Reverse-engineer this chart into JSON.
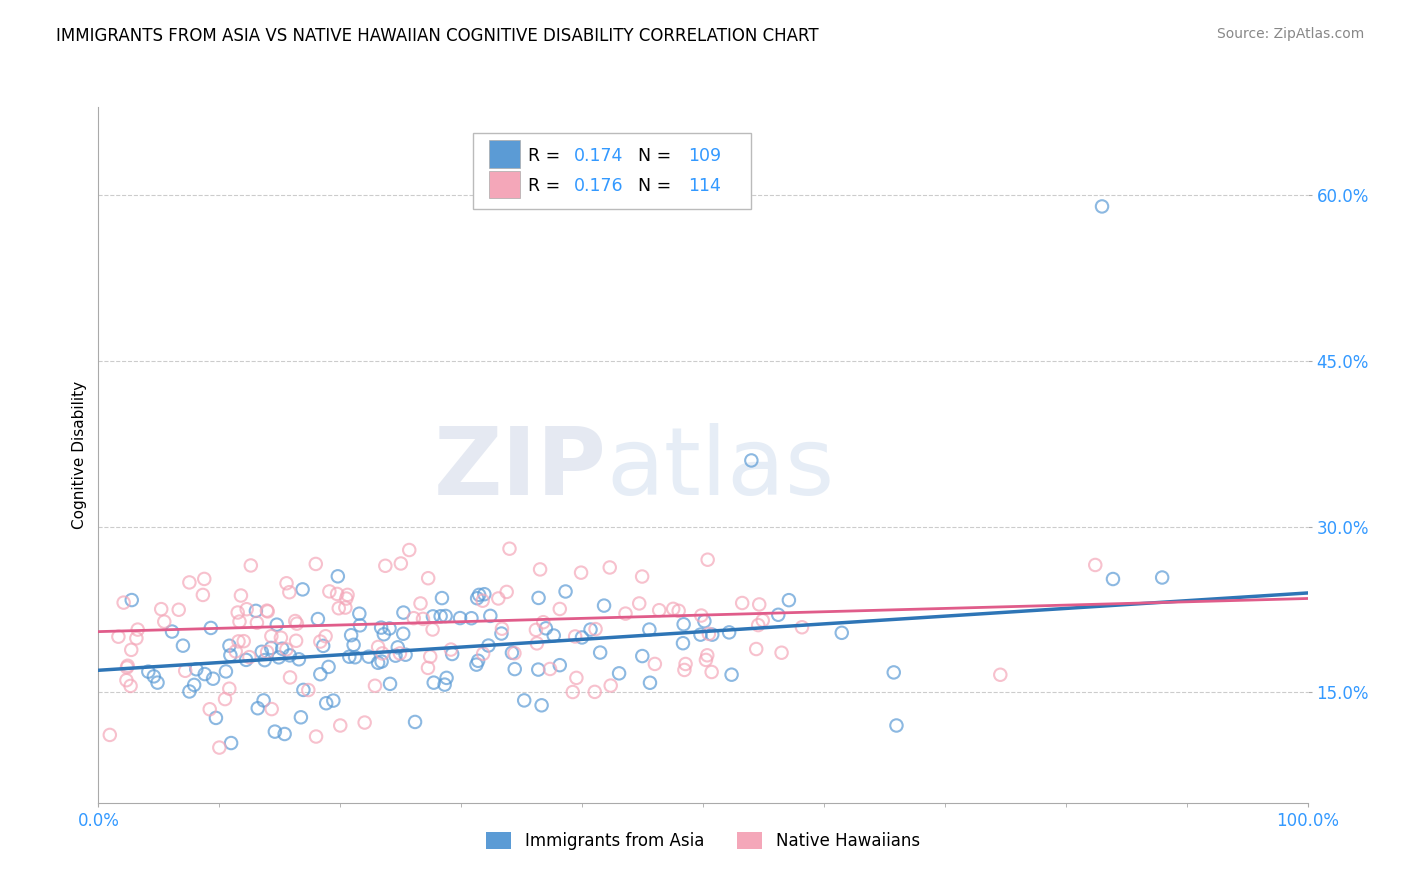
{
  "title": "IMMIGRANTS FROM ASIA VS NATIVE HAWAIIAN COGNITIVE DISABILITY CORRELATION CHART",
  "source": "Source: ZipAtlas.com",
  "ylabel": "Cognitive Disability",
  "xlabel": "",
  "xlim": [
    0,
    100
  ],
  "ylim": [
    5,
    68
  ],
  "yticks": [
    15.0,
    30.0,
    45.0,
    60.0
  ],
  "xticks": [
    0,
    100
  ],
  "xtick_labels": [
    "0.0%",
    "100.0%"
  ],
  "ytick_labels": [
    "15.0%",
    "30.0%",
    "45.0%",
    "60.0%"
  ],
  "blue_color": "#5b9bd5",
  "pink_color": "#f4a7b9",
  "blue_line_color": "#2e75b6",
  "pink_line_color": "#e05c8a",
  "legend_label1": "Immigrants from Asia",
  "legend_label2": "Native Hawaiians",
  "watermark_zip": "ZIP",
  "watermark_atlas": "atlas",
  "title_fontsize": 12,
  "source_fontsize": 10,
  "axis_label_fontsize": 11,
  "tick_fontsize": 12,
  "blue_R": 0.174,
  "pink_R": 0.176,
  "blue_N": 109,
  "pink_N": 114,
  "blue_seed": 42,
  "pink_seed": 7,
  "blue_x_intercept": 17.0,
  "blue_slope": 0.07,
  "pink_x_intercept": 20.5,
  "pink_slope": 0.03
}
